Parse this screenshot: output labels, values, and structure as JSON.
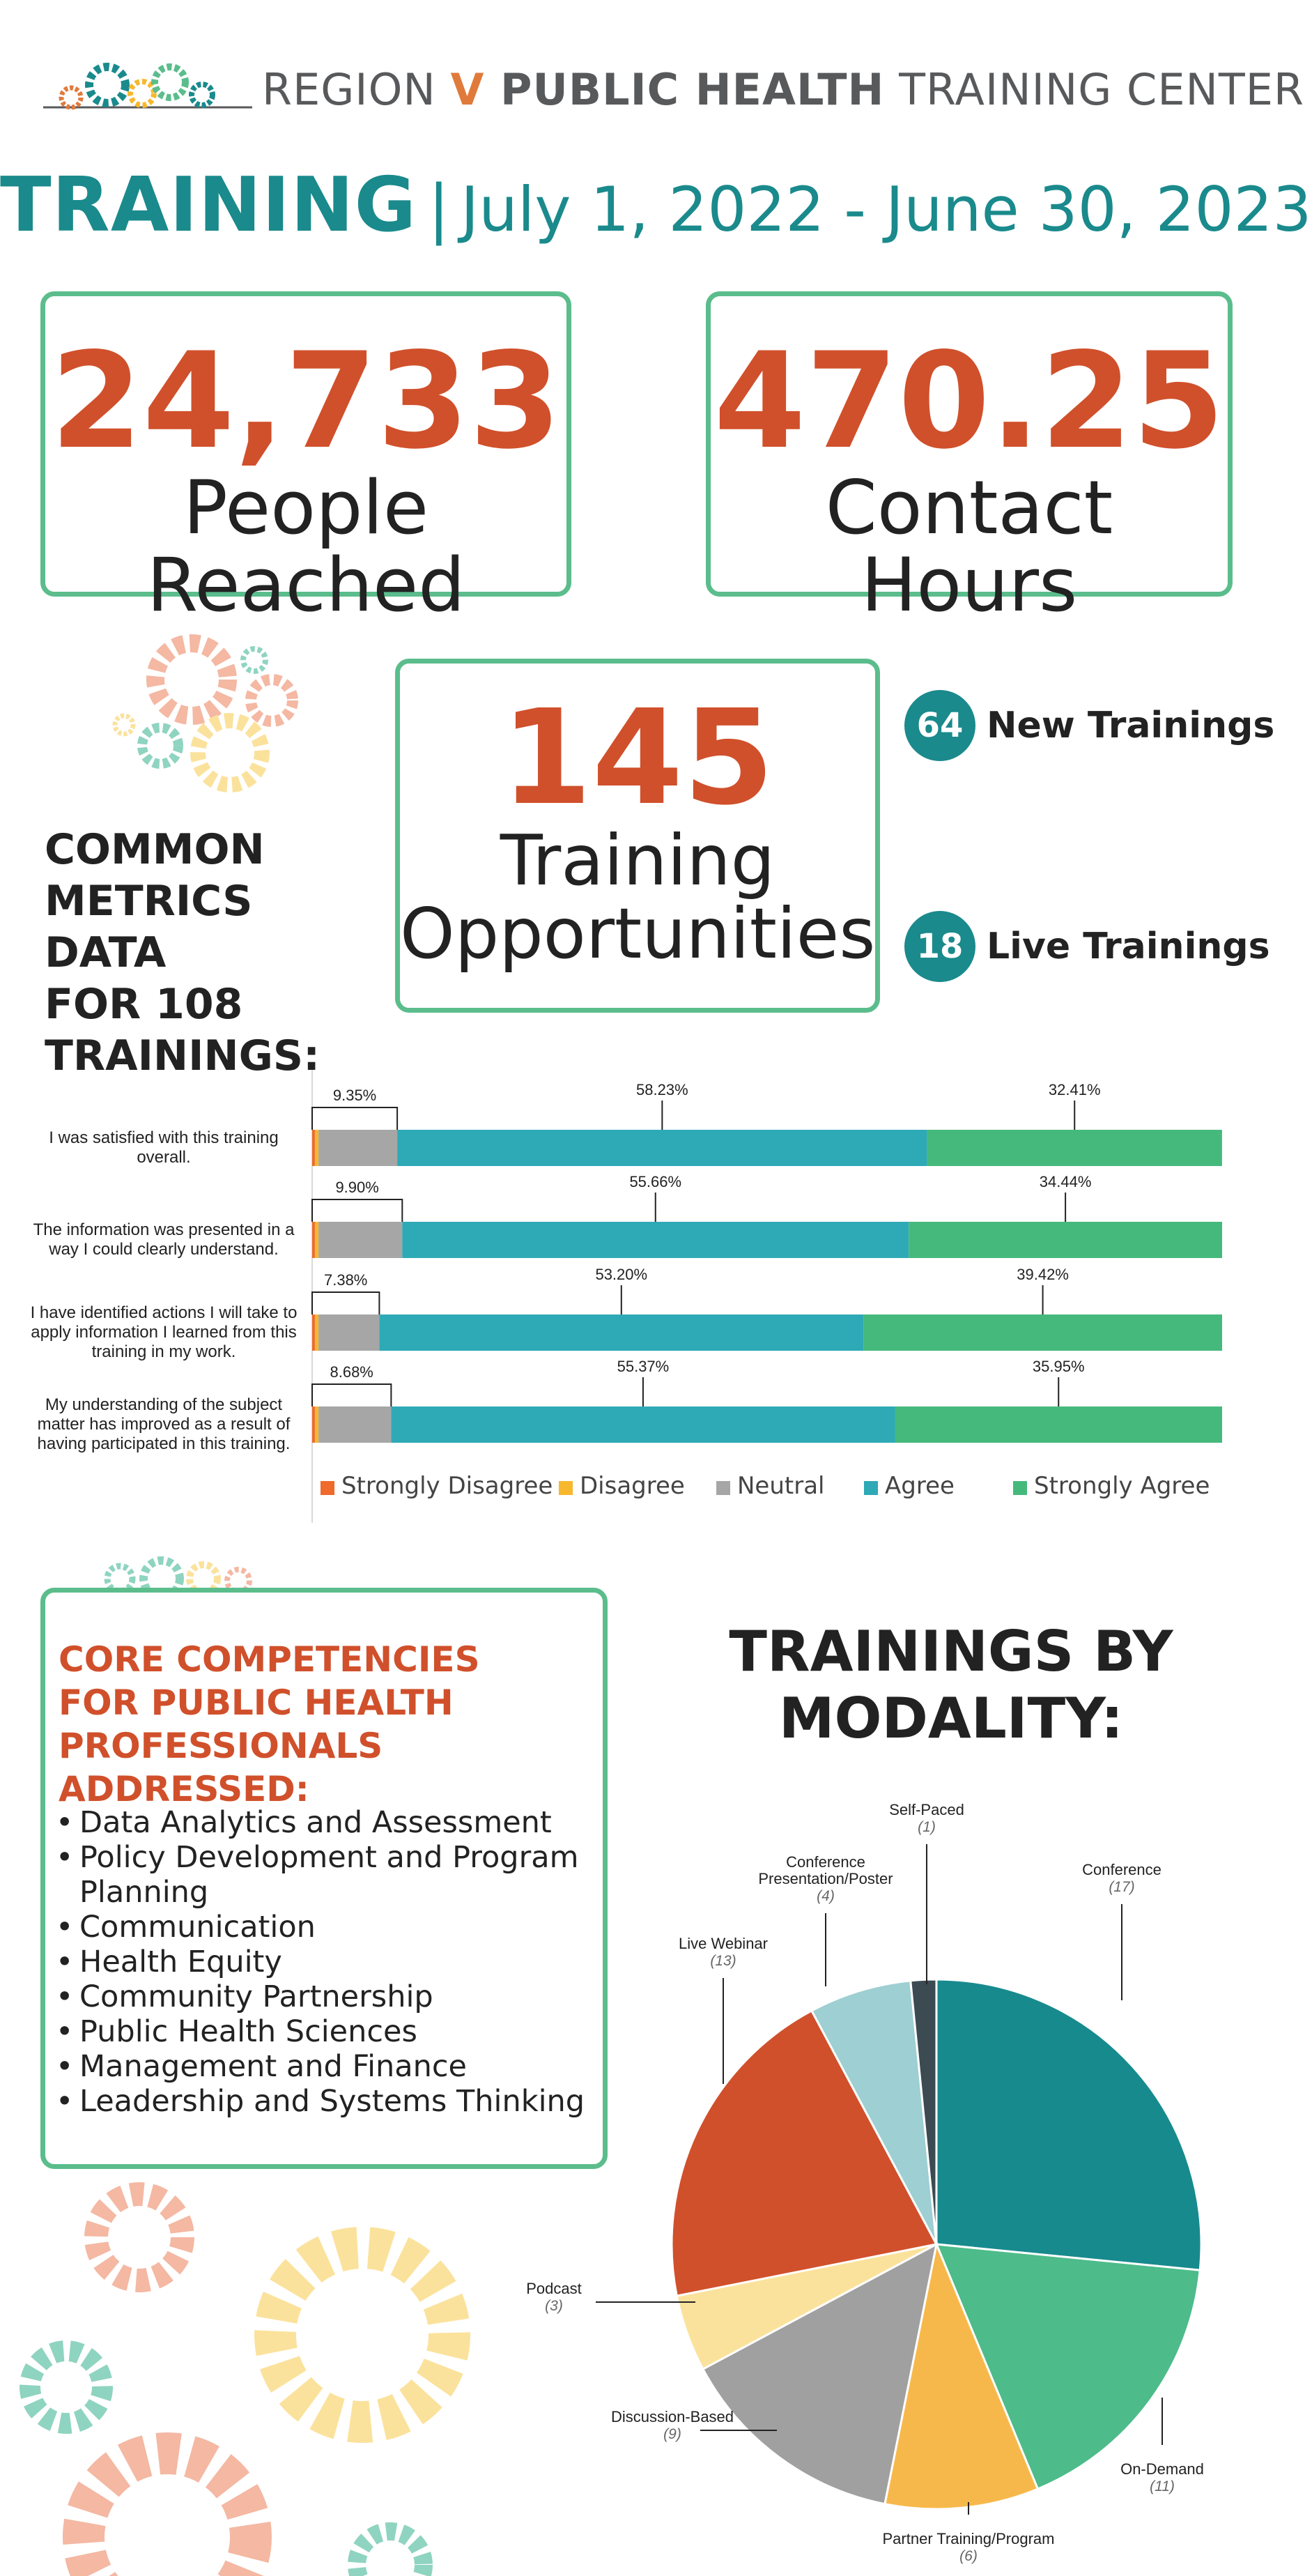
{
  "header": {
    "title_pre": "REGION ",
    "title_v": "V",
    "title_bold": " PUBLIC HEALTH",
    "title_post": " TRAINING CENTER"
  },
  "subtitle": {
    "training": "TRAINING",
    "separator": "|",
    "dates": "July 1, 2022 - June 30, 2023"
  },
  "stats": {
    "people_reached": {
      "value": "24,733",
      "label": "People Reached"
    },
    "contact_hours": {
      "value": "470.25",
      "label": "Contact Hours"
    },
    "opportunities": {
      "value": "145",
      "label_line1": "Training",
      "label_line2": "Opportunities"
    },
    "new_trainings": {
      "value": "64",
      "label": "New Trainings"
    },
    "live_trainings": {
      "value": "18",
      "label": "Live Trainings"
    }
  },
  "common_metrics": {
    "line1": "COMMON",
    "line2": "METRICS",
    "line3": "DATA",
    "line4": "FOR 108",
    "line5": "TRAININGS:"
  },
  "colors": {
    "teal": "#1a8a8c",
    "orange_red": "#d0502b",
    "green_border": "#5bbd8c",
    "strongly_disagree": "#ef6a2b",
    "disagree": "#f7b82e",
    "neutral": "#a6a6a6",
    "agree": "#2ea9b6",
    "strongly_agree": "#45b97c"
  },
  "chart_data": [
    {
      "type": "bar",
      "orientation": "horizontal-stacked",
      "categories": [
        "I was satisfied with this training overall.",
        "The information was presented in a way I could clearly understand.",
        "I have identified actions I will take to apply information I learned from this training in my work.",
        "My understanding of the subject matter has improved as a result of having participated in this training."
      ],
      "series": [
        {
          "name": "Strongly Disagree",
          "values": [
            0.3,
            0.3,
            0.3,
            0.3
          ]
        },
        {
          "name": "Disagree",
          "values": [
            0.4,
            0.4,
            0.4,
            0.4
          ]
        },
        {
          "name": "Neutral",
          "values": [
            8.65,
            9.2,
            6.68,
            7.98
          ]
        },
        {
          "name": "Agree",
          "values": [
            58.23,
            55.66,
            53.2,
            55.37
          ]
        },
        {
          "name": "Strongly Agree",
          "values": [
            32.41,
            34.44,
            39.42,
            35.95
          ]
        }
      ],
      "annotations": [
        {
          "low": "9.35%",
          "agree": "58.23%",
          "strongly_agree": "32.41%"
        },
        {
          "low": "9.90%",
          "agree": "55.66%",
          "strongly_agree": "34.44%"
        },
        {
          "low": "7.38%",
          "agree": "53.20%",
          "strongly_agree": "39.42%"
        },
        {
          "low": "8.68%",
          "agree": "55.37%",
          "strongly_agree": "35.95%"
        }
      ],
      "legend_position": "bottom",
      "xlim": [
        0,
        100
      ]
    },
    {
      "type": "pie",
      "title": "TRAININGS BY MODALITY:",
      "slices": [
        {
          "label": "Conference",
          "value": 17,
          "color": "#178a8e"
        },
        {
          "label": "On-Demand",
          "value": 11,
          "color": "#4dbb8a"
        },
        {
          "label": "Partner Training/Program",
          "value": 6,
          "color": "#f7b84b"
        },
        {
          "label": "Discussion-Based",
          "value": 9,
          "color": "#a0a0a0"
        },
        {
          "label": "Podcast",
          "value": 3,
          "color": "#fbe29c"
        },
        {
          "label": "Live Webinar",
          "value": 13,
          "color": "#d0502b"
        },
        {
          "label": "Conference Presentation/Poster",
          "value": 4,
          "color": "#9ecfd2"
        },
        {
          "label": "Self-Paced",
          "value": 1,
          "color": "#3c4a52"
        }
      ]
    }
  ],
  "core": {
    "title_line1": "CORE COMPETENCIES",
    "title_line2": "FOR PUBLIC HEALTH",
    "title_line3": "PROFESSIONALS ADDRESSED:",
    "items": [
      "Data Analytics and Assessment",
      "Policy Development and Program Planning",
      "Communication",
      "Health Equity",
      "Community Partnership",
      "Public Health Sciences",
      "Management and Finance",
      "Leadership and Systems Thinking"
    ]
  },
  "modality": {
    "title_line1": "TRAININGS BY",
    "title_line2": "MODALITY:"
  }
}
